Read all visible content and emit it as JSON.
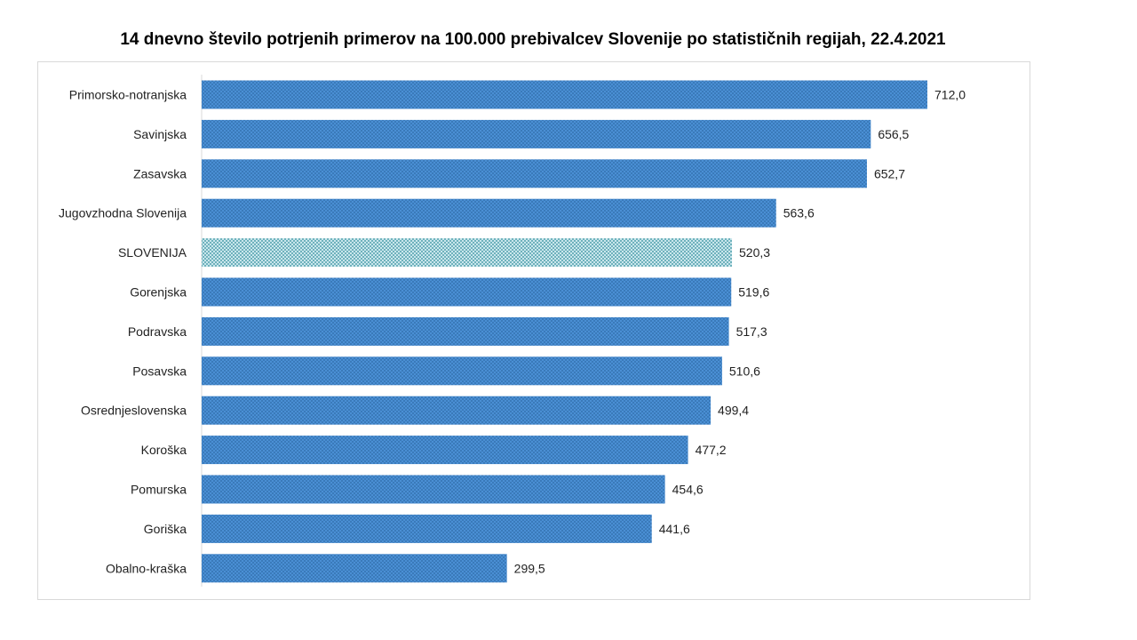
{
  "chart_data": {
    "type": "bar",
    "orientation": "horizontal",
    "title": "14 dnevno število potrjenih primerov na 100.000 prebivalcev Slovenije po statističnih regijah, 22.4.2021",
    "categories": [
      "Primorsko-notranjska",
      "Savinjska",
      "Zasavska",
      "Jugovzhodna Slovenija",
      "SLOVENIJA",
      "Gorenjska",
      "Podravska",
      "Posavska",
      "Osrednjeslovenska",
      "Koroška",
      "Pomurska",
      "Goriška",
      "Obalno-kraška"
    ],
    "values": [
      712.0,
      656.5,
      652.7,
      563.6,
      520.3,
      519.6,
      517.3,
      510.6,
      499.4,
      477.2,
      454.6,
      441.6,
      299.5
    ],
    "value_labels": [
      "712,0",
      "656,5",
      "652,7",
      "563,6",
      "520,3",
      "519,6",
      "517,3",
      "510,6",
      "499,4",
      "477,2",
      "454,6",
      "441,6",
      "299,5"
    ],
    "highlight_category": "SLOVENIJA",
    "xlim": [
      0,
      750
    ],
    "grid": false,
    "legend": "none",
    "colors": {
      "bar": "#4a8fd4",
      "bar_dots": "#2f6aa8",
      "highlight": "#c9e6ec",
      "highlight_dots": "#2e8c9a"
    }
  }
}
